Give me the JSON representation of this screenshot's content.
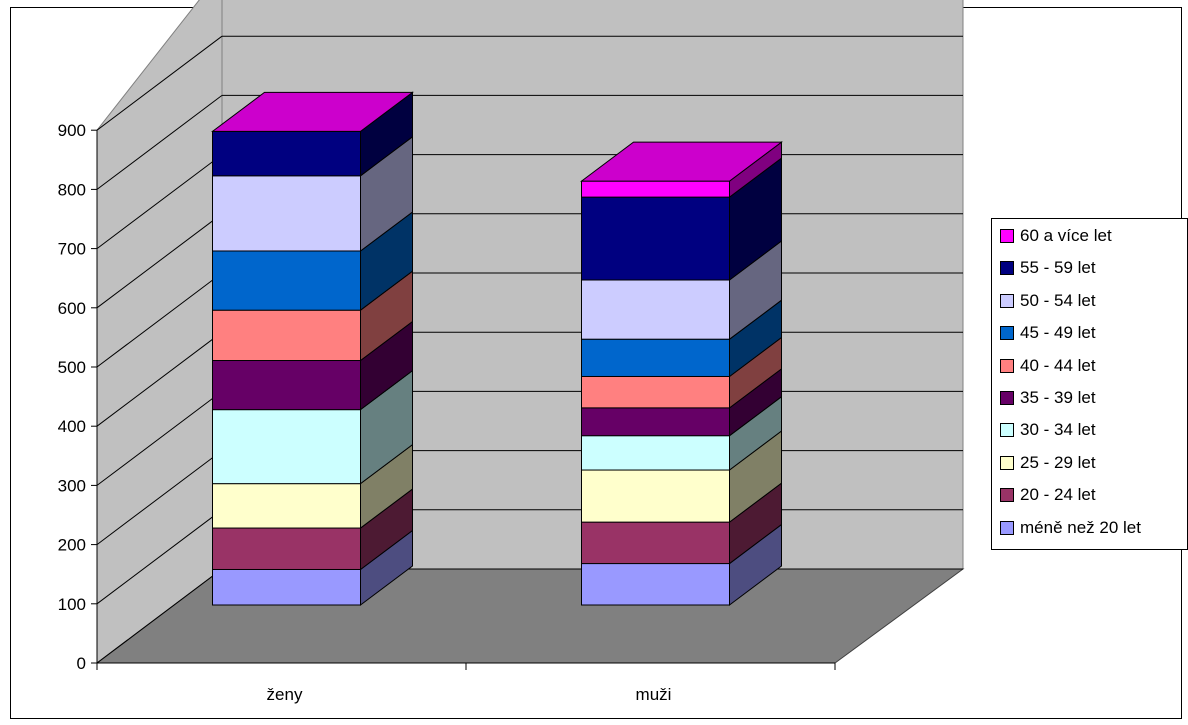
{
  "chart_data": {
    "type": "bar",
    "stacked": true,
    "three_d": true,
    "categories": [
      "ženy",
      "muži"
    ],
    "ylim": [
      0,
      900
    ],
    "y_ticks": [
      "0",
      "100",
      "200",
      "300",
      "400",
      "500",
      "600",
      "700",
      "800",
      "900"
    ],
    "grid": true,
    "legend_position": "right",
    "series": [
      {
        "name": "méně než 20 let",
        "color": "#9999FF",
        "values": [
          60,
          70
        ]
      },
      {
        "name": "20 - 24 let",
        "color": "#993366",
        "values": [
          70,
          70
        ]
      },
      {
        "name": "25 - 29 let",
        "color": "#FFFFCC",
        "values": [
          75,
          88
        ]
      },
      {
        "name": "30 - 34 let",
        "color": "#CCFFFF",
        "values": [
          125,
          58
        ]
      },
      {
        "name": "35 - 39 let",
        "color": "#660066",
        "values": [
          83,
          47
        ]
      },
      {
        "name": "40 - 44 let",
        "color": "#FF8080",
        "values": [
          85,
          53
        ]
      },
      {
        "name": "45 - 49 let",
        "color": "#0066CC",
        "values": [
          100,
          63
        ]
      },
      {
        "name": "50 - 54 let",
        "color": "#CCCCFF",
        "values": [
          127,
          100
        ]
      },
      {
        "name": "55 - 59 let",
        "color": "#000080",
        "values": [
          75,
          140
        ]
      },
      {
        "name": "60 a více let",
        "color": "#FF00FF",
        "values": [
          0,
          27
        ]
      }
    ]
  }
}
